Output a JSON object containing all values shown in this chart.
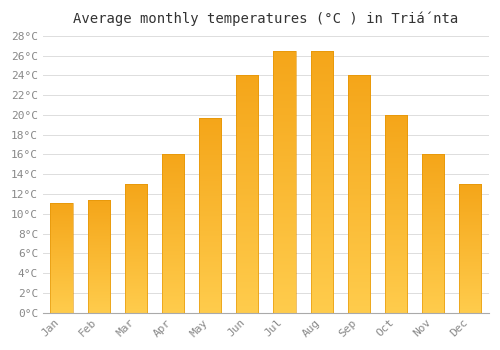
{
  "months": [
    "Jan",
    "Feb",
    "Mar",
    "Apr",
    "May",
    "Jun",
    "Jul",
    "Aug",
    "Sep",
    "Oct",
    "Nov",
    "Dec"
  ],
  "temperatures": [
    11.1,
    11.4,
    13.0,
    16.0,
    19.7,
    24.0,
    26.5,
    26.5,
    24.0,
    20.0,
    16.0,
    13.0
  ],
  "bar_color_top": "#FFC020",
  "bar_color_bottom": "#F5A800",
  "bar_edge_color": "#E09000",
  "background_color": "#FFFFFF",
  "grid_color": "#DDDDDD",
  "title": "Average monthly temperatures (°C ) in Triá́nta",
  "ylim_max": 28,
  "ytick_interval": 2,
  "title_fontsize": 10,
  "tick_fontsize": 8,
  "font_family": "monospace",
  "tick_color": "#888888",
  "bar_width": 0.6
}
